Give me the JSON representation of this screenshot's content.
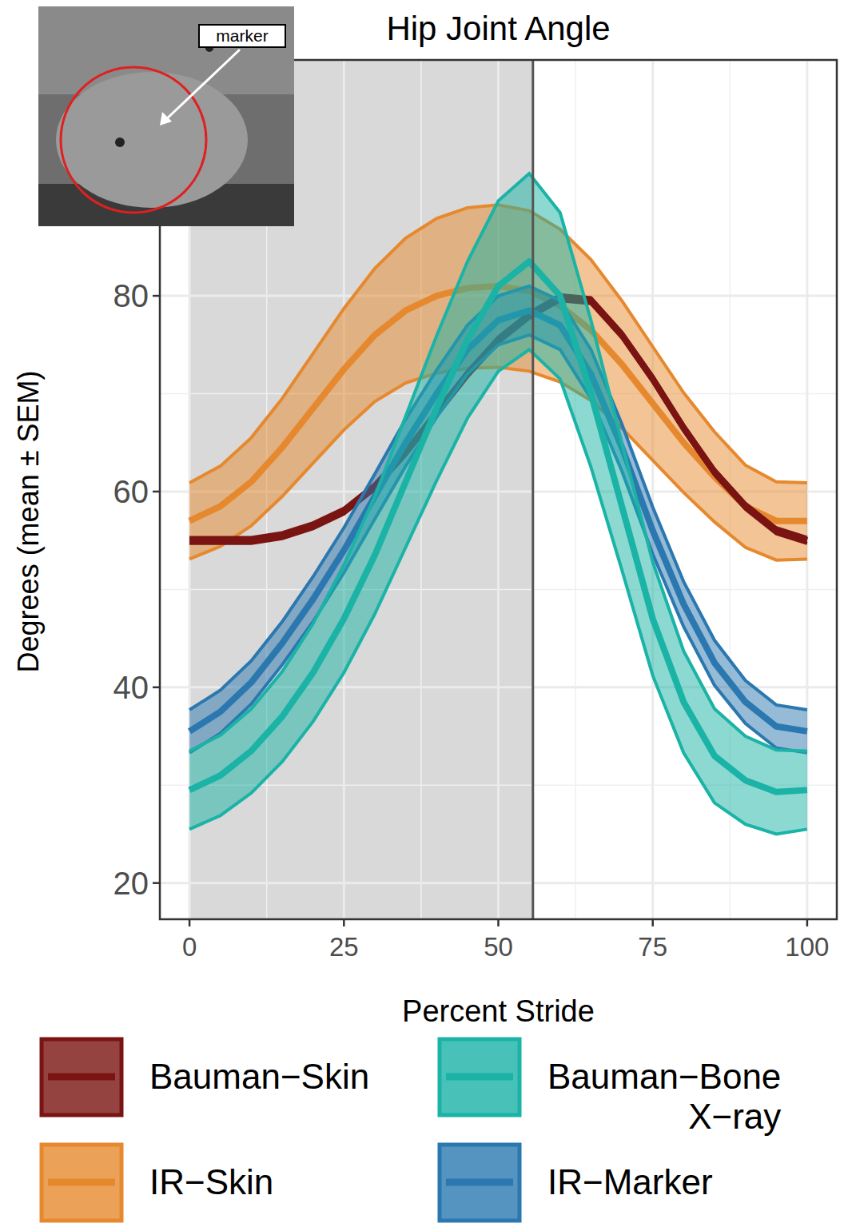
{
  "chart_data": {
    "type": "line",
    "title": "Hip Joint Angle",
    "x_label": "Percent Stride",
    "y_label": "Degrees (mean ± SEM)",
    "inset_label": "marker",
    "x": [
      0,
      5,
      10,
      15,
      20,
      25,
      30,
      35,
      40,
      45,
      50,
      55,
      60,
      65,
      70,
      75,
      80,
      85,
      90,
      95,
      100
    ],
    "xlim": [
      -4.8,
      104.8
    ],
    "ylim": [
      16.3,
      104.1
    ],
    "xticks": [
      0,
      25,
      50,
      75,
      100
    ],
    "yticks": [
      20,
      40,
      60,
      80
    ],
    "grid": true,
    "legend": "bottom",
    "shaded_region": [
      0,
      55.6
    ],
    "vline": 55.6,
    "series": [
      {
        "name": "Bauman−Skin",
        "color": "#7a1412",
        "values": [
          55,
          55,
          55,
          55.5,
          56.5,
          58,
          60.5,
          64,
          68,
          72,
          75.5,
          78,
          79.8,
          79.5,
          76,
          71.5,
          66.5,
          62,
          58.5,
          56,
          55
        ],
        "sem": [
          0.3,
          0.3,
          0.3,
          0.3,
          0.3,
          0.3,
          0.3,
          0.3,
          0.3,
          0.3,
          0.3,
          0.3,
          0.3,
          0.3,
          0.3,
          0.3,
          0.3,
          0.3,
          0.3,
          0.3,
          0.3
        ]
      },
      {
        "name": "IR−Skin",
        "color": "#e6892e",
        "values": [
          57,
          58.5,
          61,
          64.5,
          68.5,
          72.5,
          76,
          78.5,
          80,
          80.8,
          81,
          80.5,
          79,
          76.5,
          73,
          69,
          65,
          61.5,
          58.5,
          57,
          57
        ],
        "sem": [
          3.9,
          4.1,
          4.5,
          5,
          5.6,
          6.2,
          6.8,
          7.4,
          7.9,
          8.2,
          8.3,
          8.2,
          7.8,
          7.2,
          6.5,
          5.8,
          5.1,
          4.6,
          4.2,
          4,
          3.9
        ]
      },
      {
        "name": "Bauman−Bone X−ray",
        "color": "#1ab3a6",
        "values": [
          29.5,
          31,
          33.5,
          37,
          41.5,
          47,
          53.5,
          61,
          68.5,
          75.5,
          81,
          83.5,
          80,
          70,
          58.5,
          47,
          38.5,
          33,
          30.5,
          29.3,
          29.5
        ],
        "sem": [
          4,
          4.1,
          4.3,
          4.6,
          5,
          5.5,
          6,
          6.7,
          7.4,
          8,
          8.7,
          9,
          8.5,
          7.5,
          6.5,
          5.8,
          5.2,
          4.8,
          4.5,
          4.3,
          4
        ]
      },
      {
        "name": "IR−Marker",
        "color": "#2b78b0",
        "values": [
          35.5,
          37.5,
          40.5,
          44.5,
          49,
          54,
          59.5,
          65,
          70,
          74.5,
          77.5,
          78.5,
          77,
          72,
          64.5,
          56,
          48.5,
          42.5,
          38.5,
          36,
          35.5
        ],
        "sem": [
          2.2,
          2.2,
          2.2,
          2.2,
          2.3,
          2.3,
          2.3,
          2.4,
          2.4,
          2.5,
          2.5,
          2.5,
          2.5,
          2.5,
          2.4,
          2.4,
          2.3,
          2.3,
          2.2,
          2.2,
          2.2
        ]
      }
    ]
  }
}
